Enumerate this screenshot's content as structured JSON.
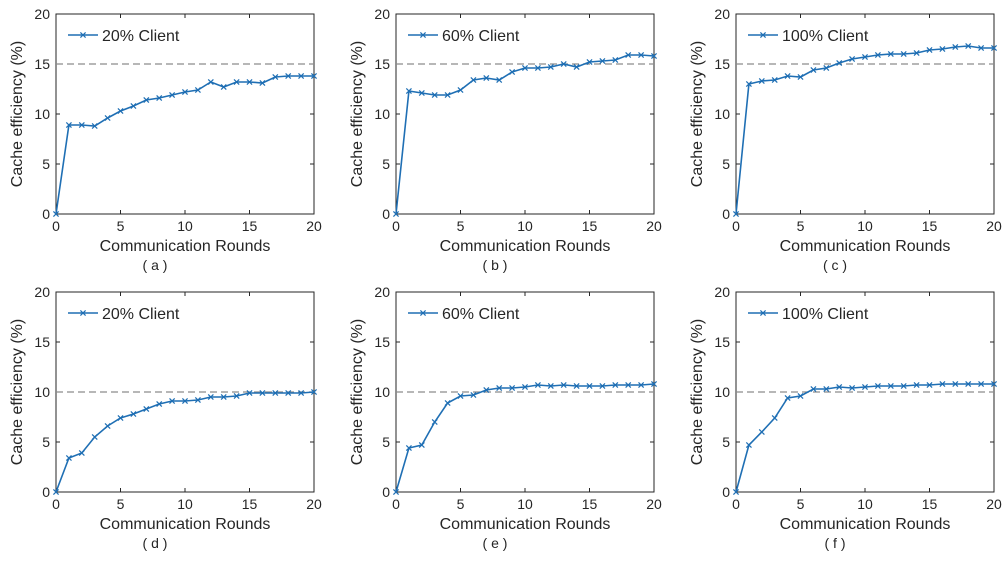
{
  "colors": {
    "series": "#1f6fb4",
    "reference": "#8c8c8c",
    "axis": "#262626"
  },
  "chart_data": [
    {
      "type": "line",
      "caption": "( a )",
      "xlabel": "Communication Rounds",
      "ylabel": "Cache efficiency (%)",
      "xlim": [
        0,
        20
      ],
      "ylim": [
        0,
        20
      ],
      "xticks": [
        "0",
        "5",
        "10",
        "15",
        "20"
      ],
      "yticks": [
        "0",
        "5",
        "10",
        "15",
        "20"
      ],
      "legend_position": "top-left",
      "reference_line": 15,
      "series": [
        {
          "name": "20% Client",
          "x": [
            0,
            1,
            2,
            3,
            4,
            5,
            6,
            7,
            8,
            9,
            10,
            11,
            12,
            13,
            14,
            15,
            16,
            17,
            18,
            19,
            20
          ],
          "y": [
            0,
            8.9,
            8.9,
            8.8,
            9.6,
            10.3,
            10.8,
            11.4,
            11.6,
            11.9,
            12.2,
            12.4,
            13.2,
            12.7,
            13.2,
            13.2,
            13.1,
            13.7,
            13.8,
            13.8,
            13.8
          ]
        }
      ]
    },
    {
      "type": "line",
      "caption": "( b )",
      "xlabel": "Communication Rounds",
      "ylabel": "Cache efficiency (%)",
      "xlim": [
        0,
        20
      ],
      "ylim": [
        0,
        20
      ],
      "xticks": [
        "0",
        "5",
        "10",
        "15",
        "20"
      ],
      "yticks": [
        "0",
        "5",
        "10",
        "15",
        "20"
      ],
      "legend_position": "top-left",
      "reference_line": 15,
      "series": [
        {
          "name": "60% Client",
          "x": [
            0,
            1,
            2,
            3,
            4,
            5,
            6,
            7,
            8,
            9,
            10,
            11,
            12,
            13,
            14,
            15,
            16,
            17,
            18,
            19,
            20
          ],
          "y": [
            0,
            12.3,
            12.1,
            11.9,
            11.9,
            12.4,
            13.4,
            13.6,
            13.4,
            14.2,
            14.6,
            14.6,
            14.7,
            15.0,
            14.7,
            15.2,
            15.3,
            15.4,
            15.9,
            15.9,
            15.8
          ]
        }
      ]
    },
    {
      "type": "line",
      "caption": "( c )",
      "xlabel": "Communication Rounds",
      "ylabel": "Cache efficiency (%)",
      "xlim": [
        0,
        20
      ],
      "ylim": [
        0,
        20
      ],
      "xticks": [
        "0",
        "5",
        "10",
        "15",
        "20"
      ],
      "yticks": [
        "0",
        "5",
        "10",
        "15",
        "20"
      ],
      "legend_position": "top-left",
      "reference_line": 15,
      "series": [
        {
          "name": "100% Client",
          "x": [
            0,
            1,
            2,
            3,
            4,
            5,
            6,
            7,
            8,
            9,
            10,
            11,
            12,
            13,
            14,
            15,
            16,
            17,
            18,
            19,
            20
          ],
          "y": [
            0,
            13.0,
            13.3,
            13.4,
            13.8,
            13.7,
            14.4,
            14.6,
            15.1,
            15.5,
            15.7,
            15.9,
            16.0,
            16.0,
            16.1,
            16.4,
            16.5,
            16.7,
            16.8,
            16.6,
            16.6
          ]
        }
      ]
    },
    {
      "type": "line",
      "caption": "( d )",
      "xlabel": "Communication Rounds",
      "ylabel": "Cache efficiency (%)",
      "xlim": [
        0,
        20
      ],
      "ylim": [
        0,
        20
      ],
      "xticks": [
        "0",
        "5",
        "10",
        "15",
        "20"
      ],
      "yticks": [
        "0",
        "5",
        "10",
        "15",
        "20"
      ],
      "legend_position": "top-left",
      "reference_line": 10,
      "series": [
        {
          "name": "20% Client",
          "x": [
            0,
            1,
            2,
            3,
            4,
            5,
            6,
            7,
            8,
            9,
            10,
            11,
            12,
            13,
            14,
            15,
            16,
            17,
            18,
            19,
            20
          ],
          "y": [
            0,
            3.4,
            3.9,
            5.5,
            6.6,
            7.4,
            7.8,
            8.3,
            8.8,
            9.1,
            9.1,
            9.2,
            9.5,
            9.5,
            9.6,
            9.9,
            9.9,
            9.9,
            9.9,
            9.9,
            10.0
          ]
        }
      ]
    },
    {
      "type": "line",
      "caption": "( e )",
      "xlabel": "Communication Rounds",
      "ylabel": "Cache efficiency (%)",
      "xlim": [
        0,
        20
      ],
      "ylim": [
        0,
        20
      ],
      "xticks": [
        "0",
        "5",
        "10",
        "15",
        "20"
      ],
      "yticks": [
        "0",
        "5",
        "10",
        "15",
        "20"
      ],
      "legend_position": "top-left",
      "reference_line": 10,
      "series": [
        {
          "name": "60% Client",
          "x": [
            0,
            1,
            2,
            3,
            4,
            5,
            6,
            7,
            8,
            9,
            10,
            11,
            12,
            13,
            14,
            15,
            16,
            17,
            18,
            19,
            20
          ],
          "y": [
            0,
            4.4,
            4.7,
            7.0,
            8.9,
            9.6,
            9.7,
            10.2,
            10.4,
            10.4,
            10.5,
            10.7,
            10.6,
            10.7,
            10.6,
            10.6,
            10.6,
            10.7,
            10.7,
            10.7,
            10.8
          ]
        }
      ]
    },
    {
      "type": "line",
      "caption": "( f )",
      "xlabel": "Communication Rounds",
      "ylabel": "Cache efficiency (%)",
      "xlim": [
        0,
        20
      ],
      "ylim": [
        0,
        20
      ],
      "xticks": [
        "0",
        "5",
        "10",
        "15",
        "20"
      ],
      "yticks": [
        "0",
        "5",
        "10",
        "15",
        "20"
      ],
      "legend_position": "top-left",
      "reference_line": 10,
      "series": [
        {
          "name": "100% Client",
          "x": [
            0,
            1,
            2,
            3,
            4,
            5,
            6,
            7,
            8,
            9,
            10,
            11,
            12,
            13,
            14,
            15,
            16,
            17,
            18,
            19,
            20
          ],
          "y": [
            0,
            4.7,
            6.0,
            7.4,
            9.4,
            9.6,
            10.3,
            10.3,
            10.5,
            10.4,
            10.5,
            10.6,
            10.6,
            10.6,
            10.7,
            10.7,
            10.8,
            10.8,
            10.8,
            10.8,
            10.8
          ]
        }
      ]
    }
  ]
}
